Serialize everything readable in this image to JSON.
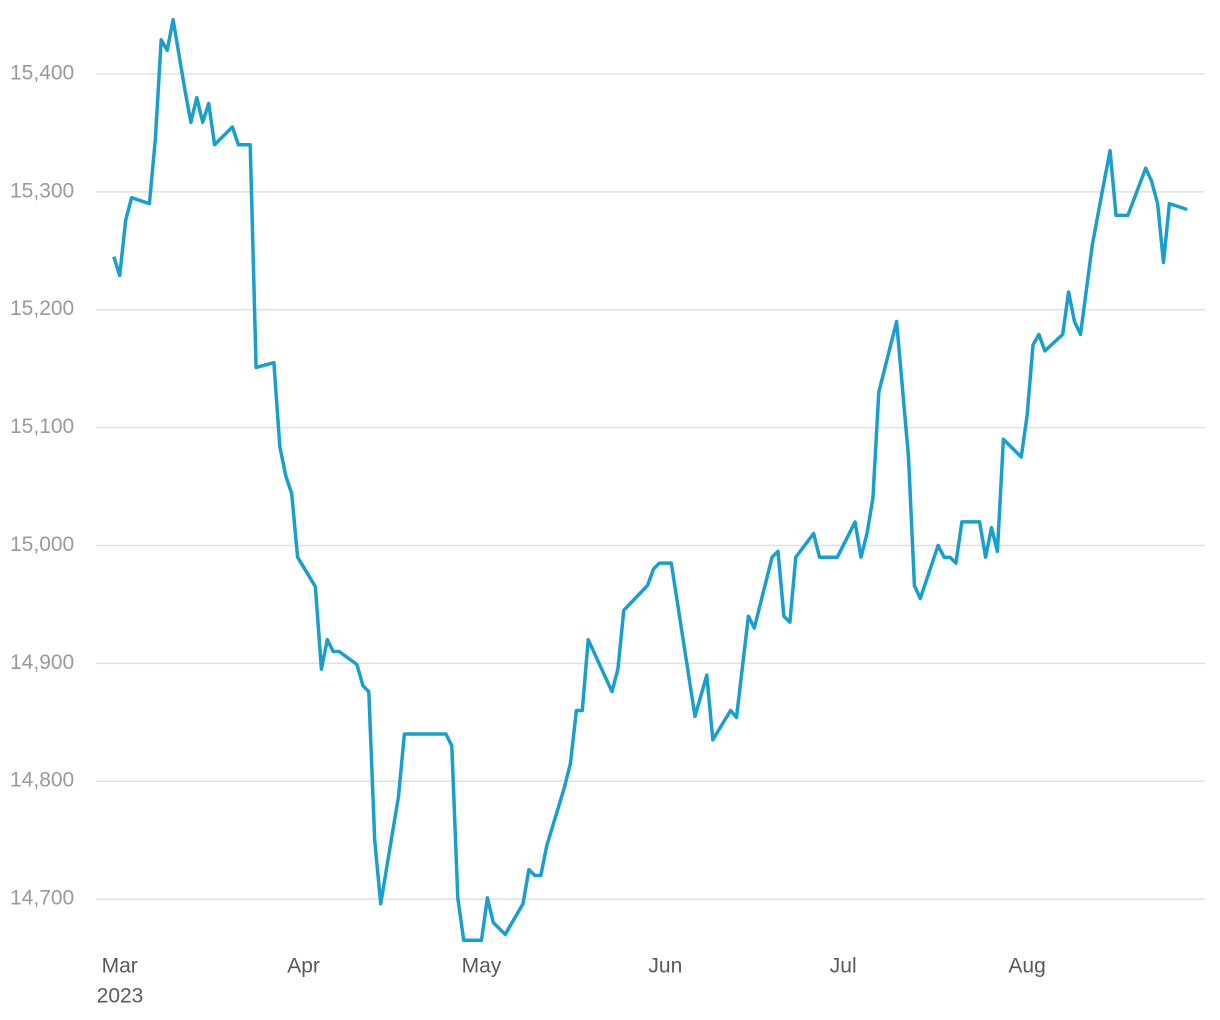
{
  "chart_data": {
    "type": "line",
    "x": [
      59,
      60,
      61,
      62,
      65,
      66,
      67,
      68,
      69,
      71,
      72,
      73,
      74,
      75,
      76,
      79,
      80,
      82,
      83,
      86,
      87,
      88,
      89,
      90,
      93,
      94,
      95,
      96,
      97,
      100,
      101,
      102,
      103,
      104,
      107,
      108,
      115,
      116,
      117,
      118,
      121,
      122,
      123,
      125,
      128,
      129,
      130,
      131,
      132,
      135,
      136,
      137,
      138,
      139,
      143,
      144,
      145,
      149,
      150,
      151,
      153,
      157,
      159,
      160,
      163,
      164,
      166,
      167,
      170,
      171,
      172,
      173,
      174,
      177,
      178,
      181,
      184,
      185,
      186,
      187,
      188,
      191,
      193,
      194,
      195,
      198,
      199,
      200,
      201,
      202,
      205,
      206,
      207,
      208,
      209,
      212,
      213,
      214,
      215,
      216,
      219,
      220,
      221,
      222,
      224,
      226,
      227,
      228,
      230,
      233,
      234,
      235,
      236,
      237,
      240
    ],
    "values": [
      15245,
      15229,
      15276,
      15295,
      15290,
      15344,
      15429,
      15420,
      15446,
      15386,
      15359,
      15380,
      15359,
      15375,
      15340,
      15355,
      15340,
      15340,
      15151,
      15155,
      15084,
      15059,
      15044,
      14990,
      14965,
      14895,
      14920,
      14910,
      14910,
      14899,
      14881,
      14876,
      14750,
      14696,
      14787,
      14840,
      14840,
      14830,
      14701,
      14665,
      14665,
      14701,
      14680,
      14670,
      14696,
      14725,
      14720,
      14720,
      14745,
      14795,
      14815,
      14860,
      14860,
      14920,
      14876,
      14895,
      14945,
      14966,
      14980,
      14985,
      14985,
      14855,
      14890,
      14835,
      14860,
      14854,
      14940,
      14930,
      14990,
      14995,
      14940,
      14935,
      14990,
      15010,
      14990,
      14990,
      15020,
      14990,
      15010,
      15040,
      15130,
      15190,
      15075,
      14966,
      14955,
      15000,
      14990,
      14990,
      14985,
      15020,
      15020,
      14990,
      15015,
      14995,
      15090,
      15075,
      15110,
      15170,
      15179,
      15165,
      15179,
      15215,
      15190,
      15179,
      15255,
      15309,
      15335,
      15280,
      15280,
      15320,
      15309,
      15290,
      15240,
      15290,
      15285
    ],
    "color": "#1a9ecb",
    "xlim": [
      56,
      243
    ],
    "xticks": [
      {
        "value": 60,
        "label": "Mar"
      },
      {
        "value": 91,
        "label": "Apr"
      },
      {
        "value": 121,
        "label": "May"
      },
      {
        "value": 152,
        "label": "Jun"
      },
      {
        "value": 182,
        "label": "Jul"
      },
      {
        "value": 213,
        "label": "Aug"
      }
    ],
    "x_sublabel": "2023",
    "ylim": [
      14650,
      15450
    ],
    "yticks": [
      {
        "value": 14700,
        "label": "14,700"
      },
      {
        "value": 14800,
        "label": "14,800"
      },
      {
        "value": 14900,
        "label": "14,900"
      },
      {
        "value": 15000,
        "label": "15,000"
      },
      {
        "value": 15100,
        "label": "15,100"
      },
      {
        "value": 15200,
        "label": "15,200"
      },
      {
        "value": 15300,
        "label": "15,300"
      },
      {
        "value": 15400,
        "label": "15,400"
      }
    ],
    "grid": true
  }
}
